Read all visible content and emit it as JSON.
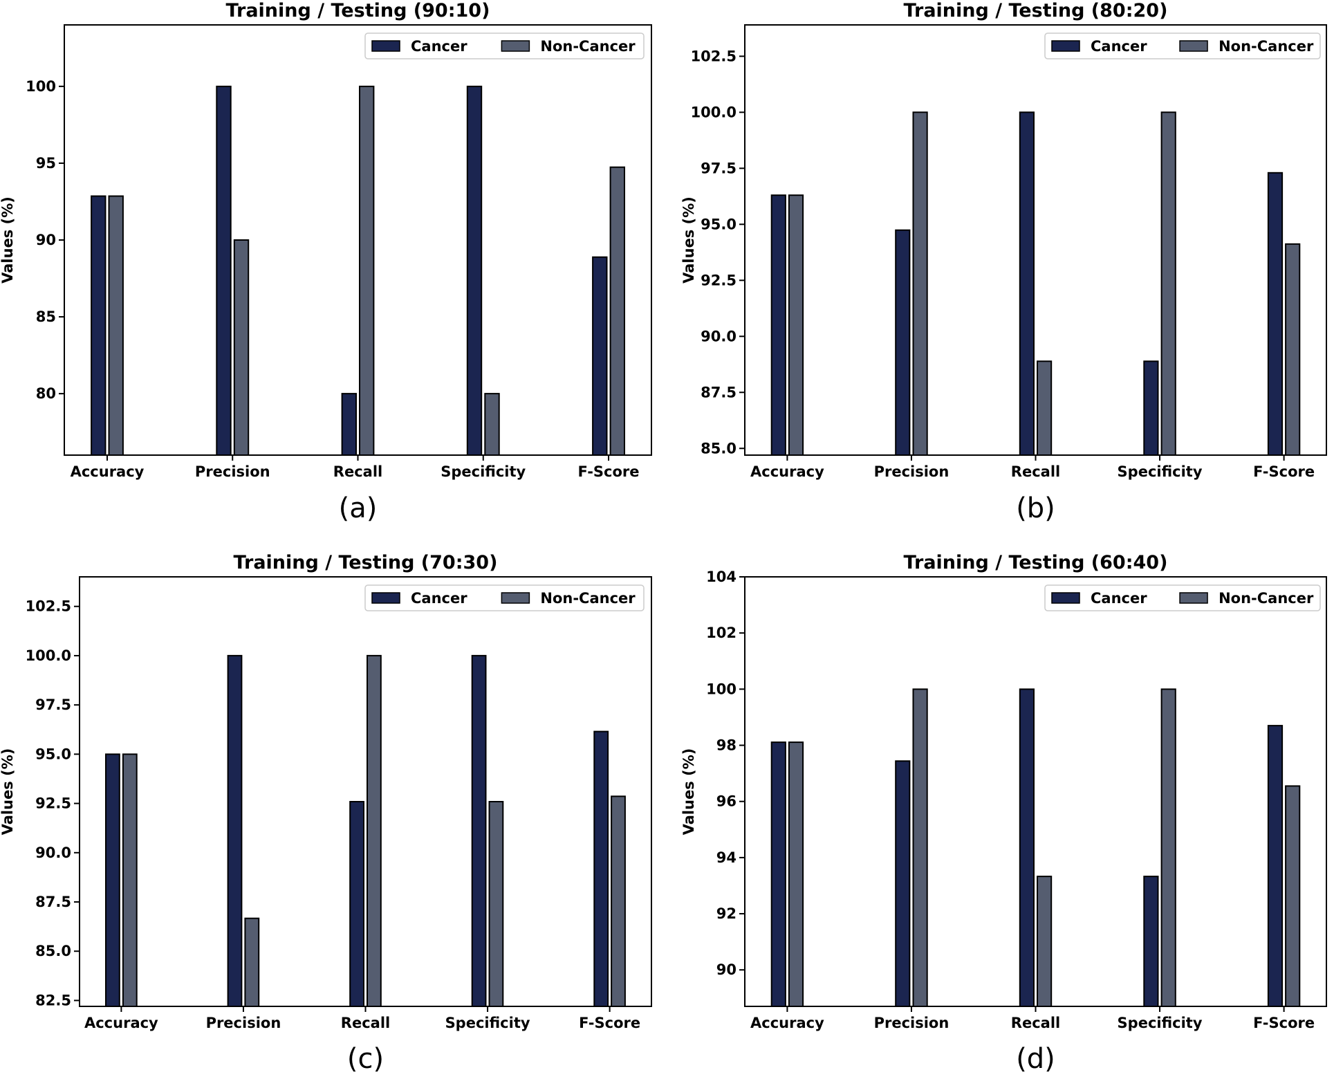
{
  "colors": {
    "cancer": "#1b2550",
    "non_cancer": "#555d70",
    "edge": "#000000"
  },
  "chart_data": [
    {
      "type": "bar",
      "title": "Training / Testing (90:10)",
      "caption": "(a)",
      "ylabel": "Values (%)",
      "xlabel": "",
      "categories": [
        "Accuracy",
        "Precision",
        "Recall",
        "Specificity",
        "F-Score"
      ],
      "series": [
        {
          "name": "Cancer",
          "values": [
            92.86,
            100,
            80,
            100,
            88.89
          ]
        },
        {
          "name": "Non-Cancer",
          "values": [
            92.86,
            90,
            100,
            80,
            94.74
          ]
        }
      ],
      "ylim": [
        76,
        104
      ],
      "yticks": [
        80,
        85,
        90,
        95,
        100
      ],
      "ytick_labels": [
        "80",
        "85",
        "90",
        "95",
        "100"
      ],
      "legend": "top-right"
    },
    {
      "type": "bar",
      "title": "Training / Testing (80:20)",
      "caption": "(b)",
      "ylabel": "Values (%)",
      "xlabel": "",
      "categories": [
        "Accuracy",
        "Precision",
        "Recall",
        "Specificity",
        "F-Score"
      ],
      "series": [
        {
          "name": "Cancer",
          "values": [
            96.3,
            94.74,
            100,
            88.89,
            97.3
          ]
        },
        {
          "name": "Non-Cancer",
          "values": [
            96.3,
            100,
            88.89,
            100,
            94.12
          ]
        }
      ],
      "ylim": [
        84.7,
        103.9
      ],
      "yticks": [
        85,
        87.5,
        90,
        92.5,
        95,
        97.5,
        100,
        102.5
      ],
      "ytick_labels": [
        "85.0",
        "87.5",
        "90.0",
        "92.5",
        "95.0",
        "97.5",
        "100.0",
        "102.5"
      ],
      "legend": "top-right"
    },
    {
      "type": "bar",
      "title": "Training / Testing (70:30)",
      "caption": "(c)",
      "ylabel": "Values (%)",
      "xlabel": "",
      "categories": [
        "Accuracy",
        "Precision",
        "Recall",
        "Specificity",
        "F-Score"
      ],
      "series": [
        {
          "name": "Cancer",
          "values": [
            95,
            100,
            92.59,
            100,
            96.15
          ]
        },
        {
          "name": "Non-Cancer",
          "values": [
            95,
            86.67,
            100,
            92.59,
            92.86
          ]
        }
      ],
      "ylim": [
        82.2,
        104
      ],
      "yticks": [
        82.5,
        85,
        87.5,
        90,
        92.5,
        95,
        97.5,
        100,
        102.5
      ],
      "ytick_labels": [
        "82.5",
        "85.0",
        "87.5",
        "90.0",
        "92.5",
        "95.0",
        "97.5",
        "100.0",
        "102.5"
      ],
      "legend": "top-right"
    },
    {
      "type": "bar",
      "title": "Training / Testing (60:40)",
      "caption": "(d)",
      "ylabel": "Values (%)",
      "xlabel": "",
      "categories": [
        "Accuracy",
        "Precision",
        "Recall",
        "Specificity",
        "F-Score"
      ],
      "series": [
        {
          "name": "Cancer",
          "values": [
            98.11,
            97.44,
            100,
            93.33,
            98.7
          ]
        },
        {
          "name": "Non-Cancer",
          "values": [
            98.11,
            100,
            93.33,
            100,
            96.55
          ]
        }
      ],
      "ylim": [
        88.7,
        104
      ],
      "yticks": [
        90,
        92,
        94,
        96,
        98,
        100,
        102,
        104
      ],
      "ytick_labels": [
        "90",
        "92",
        "94",
        "96",
        "98",
        "100",
        "102",
        "104"
      ],
      "legend": "top-right"
    }
  ]
}
